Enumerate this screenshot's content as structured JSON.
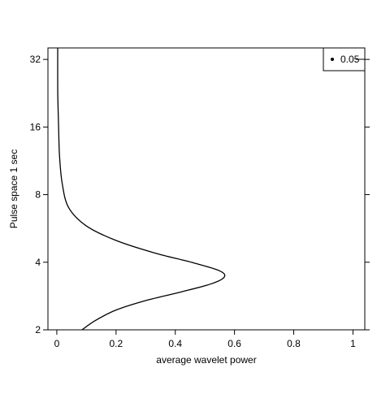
{
  "chart_data": {
    "type": "line",
    "title": "",
    "xlabel": "average wavelet power",
    "ylabel": "Pulse space 1 sec",
    "xlim": [
      -0.03,
      1.04
    ],
    "ylim": [
      2,
      36
    ],
    "y_scale": "log2",
    "grid": false,
    "x_ticks": [
      {
        "value": 0,
        "label": "0"
      },
      {
        "value": 0.2,
        "label": "0.2"
      },
      {
        "value": 0.4,
        "label": "0.4"
      },
      {
        "value": 0.6,
        "label": "0.6"
      },
      {
        "value": 0.8,
        "label": "0.8"
      },
      {
        "value": 1,
        "label": "1"
      }
    ],
    "y_ticks": [
      {
        "value": 2,
        "label": "2"
      },
      {
        "value": 4,
        "label": "4"
      },
      {
        "value": 8,
        "label": "8"
      },
      {
        "value": 16,
        "label": "16"
      },
      {
        "value": 32,
        "label": "32"
      }
    ],
    "legend": {
      "position": "top-right",
      "entries": [
        {
          "symbol": "point",
          "label": "0.05"
        }
      ]
    },
    "series": [
      {
        "style": "line",
        "color": "#000000",
        "points": [
          {
            "x": 0.085,
            "y": 2.0
          },
          {
            "x": 0.13,
            "y": 2.2
          },
          {
            "x": 0.2,
            "y": 2.45
          },
          {
            "x": 0.3,
            "y": 2.7
          },
          {
            "x": 0.42,
            "y": 2.95
          },
          {
            "x": 0.52,
            "y": 3.2
          },
          {
            "x": 0.565,
            "y": 3.43
          },
          {
            "x": 0.55,
            "y": 3.66
          },
          {
            "x": 0.46,
            "y": 3.98
          },
          {
            "x": 0.33,
            "y": 4.4
          },
          {
            "x": 0.2,
            "y": 5.0
          },
          {
            "x": 0.1,
            "y": 5.8
          },
          {
            "x": 0.04,
            "y": 7.0
          },
          {
            "x": 0.018,
            "y": 9.0
          },
          {
            "x": 0.009,
            "y": 12.0
          },
          {
            "x": 0.006,
            "y": 16.0
          },
          {
            "x": 0.004,
            "y": 20.0
          },
          {
            "x": 0.003,
            "y": 24.0
          },
          {
            "x": 0.003,
            "y": 36.0
          }
        ]
      }
    ]
  }
}
